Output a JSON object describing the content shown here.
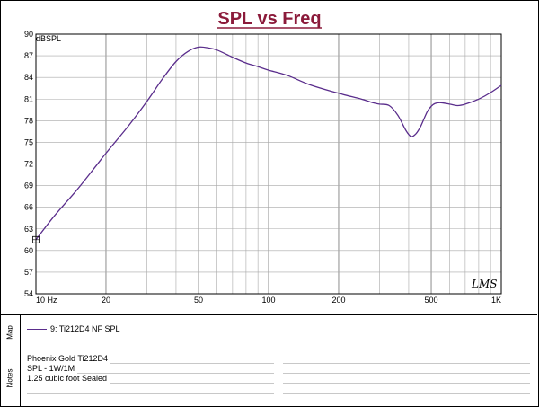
{
  "chart_data": {
    "type": "line",
    "title": "SPL vs Freq",
    "ylabel": "dBSPL",
    "xlabel": "",
    "xscale": "log",
    "xlim": [
      10,
      1000
    ],
    "ylim": [
      54,
      90
    ],
    "yticks": [
      54,
      57,
      60,
      63,
      66,
      69,
      72,
      75,
      78,
      81,
      84,
      87,
      90
    ],
    "xticks": [
      {
        "value": 10,
        "label": "10 Hz"
      },
      {
        "value": 20,
        "label": "20"
      },
      {
        "value": 50,
        "label": "50"
      },
      {
        "value": 100,
        "label": "100"
      },
      {
        "value": 200,
        "label": "200"
      },
      {
        "value": 500,
        "label": "500"
      },
      {
        "value": 1000,
        "label": "1K"
      }
    ],
    "grid": true,
    "series": [
      {
        "name": "9: Ti212D4 NF SPL",
        "color": "#5a2d8c",
        "x": [
          10,
          12,
          15,
          18,
          20,
          25,
          30,
          35,
          40,
          45,
          50,
          55,
          60,
          70,
          80,
          90,
          100,
          120,
          150,
          200,
          250,
          280,
          300,
          330,
          360,
          390,
          410,
          430,
          450,
          480,
          500,
          520,
          550,
          600,
          650,
          700,
          800,
          900,
          1000
        ],
        "y": [
          61.5,
          64.8,
          68.4,
          71.6,
          73.5,
          77.3,
          80.7,
          83.8,
          86.2,
          87.6,
          88.2,
          88.1,
          87.8,
          86.8,
          86.0,
          85.5,
          85.0,
          84.3,
          83.0,
          81.8,
          81.0,
          80.5,
          80.3,
          80.1,
          78.7,
          76.6,
          75.8,
          76.2,
          77.2,
          79.2,
          80.0,
          80.4,
          80.5,
          80.3,
          80.1,
          80.3,
          81.0,
          81.9,
          82.9
        ]
      }
    ]
  },
  "map": {
    "label": "Map",
    "legend": "9: Ti212D4 NF SPL"
  },
  "notes": {
    "label": "Notes",
    "lines": [
      "Phoenix Gold Ti212D4",
      "SPL - 1W/1M",
      "1.25 cubic foot Sealed",
      ""
    ]
  },
  "logo": "LMS"
}
